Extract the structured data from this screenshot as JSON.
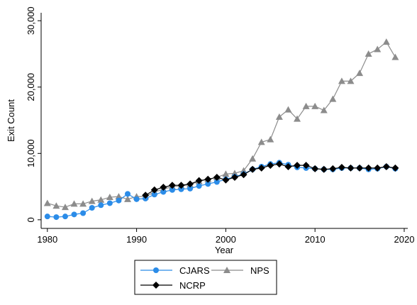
{
  "chart_data": {
    "type": "line",
    "x_label": "Year",
    "y_label": "Exit Count",
    "x": [
      1980,
      1981,
      1982,
      1983,
      1984,
      1985,
      1986,
      1987,
      1988,
      1989,
      1990,
      1991,
      1992,
      1993,
      1994,
      1995,
      1996,
      1997,
      1998,
      1999,
      2000,
      2001,
      2002,
      2003,
      2004,
      2005,
      2006,
      2007,
      2008,
      2009,
      2010,
      2011,
      2012,
      2013,
      2014,
      2015,
      2016,
      2017,
      2018,
      2019
    ],
    "xlim": [
      1979.3,
      2020.4
    ],
    "xticks": [
      1980,
      1990,
      2000,
      2010,
      2020
    ],
    "ylim": [
      -1300,
      31200
    ],
    "yticks": [
      0,
      {
        "value": 10000,
        "label": "10,000"
      },
      {
        "value": 20000,
        "label": "20,000"
      },
      {
        "value": 30000,
        "label": "30,000"
      }
    ],
    "series": [
      {
        "name": "CJARS",
        "color": "#2b8ce8",
        "marker": "circle",
        "values": [
          500,
          400,
          500,
          800,
          1000,
          1800,
          2200,
          2500,
          2900,
          3900,
          3100,
          3200,
          3800,
          4200,
          4500,
          4600,
          4700,
          5100,
          5400,
          5700,
          6100,
          6500,
          6900,
          7600,
          8000,
          8400,
          8600,
          8300,
          7900,
          7800,
          7700,
          7600,
          7600,
          7800,
          7800,
          7800,
          7600,
          7700,
          8000,
          7700
        ]
      },
      {
        "name": "NPS",
        "color": "#8c8c8c",
        "marker": "triangle",
        "values": [
          2500,
          2100,
          1900,
          2400,
          2400,
          2800,
          3000,
          3400,
          3500,
          3100,
          3500,
          3500,
          4200,
          4600,
          5000,
          5100,
          5300,
          5800,
          6100,
          6400,
          6900,
          7000,
          7400,
          9200,
          11700,
          12100,
          15500,
          16600,
          15200,
          17100,
          17100,
          16500,
          18200,
          20900,
          20900,
          22100,
          25000,
          25700,
          26800,
          24500
        ]
      },
      {
        "name": "NCRP",
        "color": "#000000",
        "marker": "diamond",
        "values": [
          null,
          null,
          null,
          null,
          null,
          null,
          null,
          null,
          null,
          null,
          null,
          3700,
          4500,
          4900,
          5200,
          5200,
          5400,
          5900,
          6100,
          6400,
          6000,
          6400,
          6800,
          7600,
          7800,
          8200,
          8400,
          8000,
          8200,
          8200,
          7700,
          7600,
          7700,
          7900,
          7800,
          7800,
          7800,
          7800,
          8000,
          7800
        ]
      }
    ]
  }
}
